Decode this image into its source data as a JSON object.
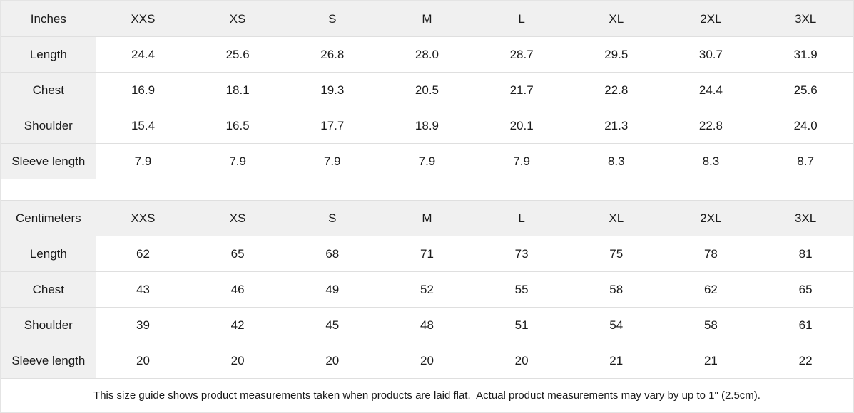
{
  "chart_data": [
    {
      "type": "table",
      "unit_header": "Inches",
      "size_columns": [
        "XXS",
        "XS",
        "S",
        "M",
        "L",
        "XL",
        "2XL",
        "3XL"
      ],
      "rows": [
        {
          "label": "Length",
          "values": [
            "24.4",
            "25.6",
            "26.8",
            "28.0",
            "28.7",
            "29.5",
            "30.7",
            "31.9"
          ]
        },
        {
          "label": "Chest",
          "values": [
            "16.9",
            "18.1",
            "19.3",
            "20.5",
            "21.7",
            "22.8",
            "24.4",
            "25.6"
          ]
        },
        {
          "label": "Shoulder",
          "values": [
            "15.4",
            "16.5",
            "17.7",
            "18.9",
            "20.1",
            "21.3",
            "22.8",
            "24.0"
          ]
        },
        {
          "label": "Sleeve length",
          "values": [
            "7.9",
            "7.9",
            "7.9",
            "7.9",
            "7.9",
            "8.3",
            "8.3",
            "8.7"
          ]
        }
      ]
    },
    {
      "type": "table",
      "unit_header": "Centimeters",
      "size_columns": [
        "XXS",
        "XS",
        "S",
        "M",
        "L",
        "XL",
        "2XL",
        "3XL"
      ],
      "rows": [
        {
          "label": "Length",
          "values": [
            "62",
            "65",
            "68",
            "71",
            "73",
            "75",
            "78",
            "81"
          ]
        },
        {
          "label": "Chest",
          "values": [
            "43",
            "46",
            "49",
            "52",
            "55",
            "58",
            "62",
            "65"
          ]
        },
        {
          "label": "Shoulder",
          "values": [
            "39",
            "42",
            "45",
            "48",
            "51",
            "54",
            "58",
            "61"
          ]
        },
        {
          "label": "Sleeve length",
          "values": [
            "20",
            "20",
            "20",
            "20",
            "20",
            "21",
            "21",
            "22"
          ]
        }
      ]
    }
  ],
  "footer": {
    "note": "This size guide shows product measurements taken when products are laid flat.  Actual product measurements may vary by up to 1\" (2.5cm)."
  },
  "colors": {
    "header_bg": "#f0f0f0",
    "border": "#dfdfdf",
    "text": "#1a1a1a",
    "background": "#ffffff"
  }
}
